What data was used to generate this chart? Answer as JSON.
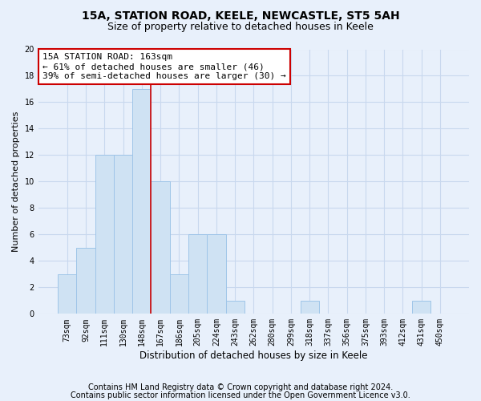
{
  "title1": "15A, STATION ROAD, KEELE, NEWCASTLE, ST5 5AH",
  "title2": "Size of property relative to detached houses in Keele",
  "xlabel": "Distribution of detached houses by size in Keele",
  "ylabel": "Number of detached properties",
  "categories": [
    "73sqm",
    "92sqm",
    "111sqm",
    "130sqm",
    "148sqm",
    "167sqm",
    "186sqm",
    "205sqm",
    "224sqm",
    "243sqm",
    "262sqm",
    "280sqm",
    "299sqm",
    "318sqm",
    "337sqm",
    "356sqm",
    "375sqm",
    "393sqm",
    "412sqm",
    "431sqm",
    "450sqm"
  ],
  "values": [
    3,
    5,
    12,
    12,
    17,
    10,
    3,
    6,
    6,
    1,
    0,
    0,
    0,
    1,
    0,
    0,
    0,
    0,
    0,
    1,
    0
  ],
  "bar_color": "#cfe2f3",
  "bar_edge_color": "#9fc5e8",
  "vline_x_index": 4.5,
  "vline_color": "#cc0000",
  "annotation_line1": "15A STATION ROAD: 163sqm",
  "annotation_line2": "← 61% of detached houses are smaller (46)",
  "annotation_line3": "39% of semi-detached houses are larger (30) →",
  "annotation_box_color": "#ffffff",
  "annotation_box_edge_color": "#cc0000",
  "ylim": [
    0,
    20
  ],
  "yticks": [
    0,
    2,
    4,
    6,
    8,
    10,
    12,
    14,
    16,
    18,
    20
  ],
  "footer1": "Contains HM Land Registry data © Crown copyright and database right 2024.",
  "footer2": "Contains public sector information licensed under the Open Government Licence v3.0.",
  "background_color": "#e8f0fb",
  "plot_bg_color": "#e8f0fb",
  "grid_color": "#c8d8ee",
  "title1_fontsize": 10,
  "title2_fontsize": 9,
  "tick_fontsize": 7,
  "ylabel_fontsize": 8,
  "xlabel_fontsize": 8.5,
  "annotation_fontsize": 8,
  "footer_fontsize": 7
}
